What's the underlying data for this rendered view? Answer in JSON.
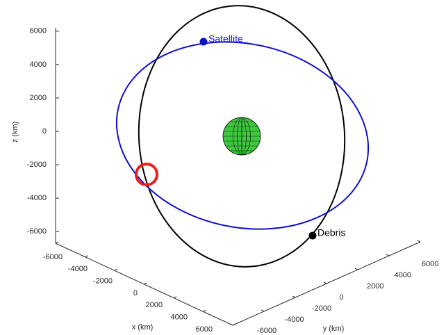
{
  "chart_data": {
    "type": "orbit3d",
    "xlabel": "x (km)",
    "ylabel": "y (km)",
    "zlabel": "z (km)",
    "xlim": [
      -6000,
      6000
    ],
    "xticks": [
      -6000,
      -4000,
      -2000,
      0,
      2000,
      4000,
      6000
    ],
    "ylim": [
      -6000,
      6000
    ],
    "yticks": [
      -6000,
      -4000,
      -2000,
      0,
      2000,
      4000,
      6000
    ],
    "zlim": [
      -6700,
      6200
    ],
    "zticks": [
      -6000,
      -4000,
      -2000,
      0,
      2000,
      4000,
      6000
    ],
    "annotations": [
      "Satellite",
      "Debris"
    ],
    "colors": {
      "satellite": "#1010c8",
      "debris": "#000000",
      "earth": "#3ec83e",
      "highlight": "#ee1c1c"
    }
  }
}
